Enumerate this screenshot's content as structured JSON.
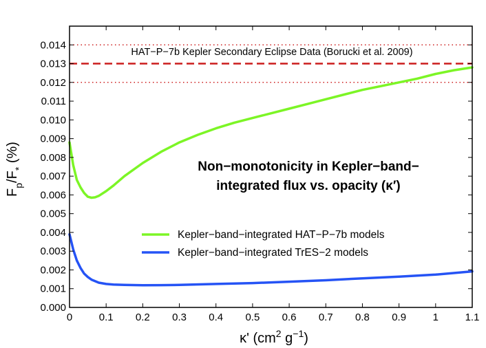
{
  "chart_data": {
    "type": "line",
    "title": "",
    "xlabel": "κ' (cm² g⁻¹)",
    "ylabel": "Fp/F* (%)",
    "xlim": [
      0,
      1.1
    ],
    "ylim": [
      0,
      0.015
    ],
    "x_ticks": [
      0,
      0.1,
      0.2,
      0.3,
      0.4,
      0.5,
      0.6,
      0.7,
      0.8,
      0.9,
      1,
      1.1
    ],
    "x_tick_labels": [
      "0",
      "0.1",
      "0.2",
      "0.3",
      "0.4",
      "0.5",
      "0.6",
      "0.7",
      "0.8",
      "0.9",
      "1",
      "1.1"
    ],
    "y_ticks": [
      0,
      0.001,
      0.002,
      0.003,
      0.004,
      0.005,
      0.006,
      0.007,
      0.008,
      0.009,
      0.01,
      0.011,
      0.012,
      0.013,
      0.014
    ],
    "y_tick_labels": [
      "0.000",
      "0.001",
      "0.002",
      "0.003",
      "0.004",
      "0.005",
      "0.006",
      "0.007",
      "0.008",
      "0.009",
      "0.010",
      "0.011",
      "0.012",
      "0.013",
      "0.014"
    ],
    "grid": false,
    "legend_position": "lower-right",
    "series": [
      {
        "name": "Kepler−band−integrated HAT−P−7b models",
        "color": "#7cf526",
        "x": [
          0,
          0.01,
          0.02,
          0.03,
          0.04,
          0.05,
          0.06,
          0.07,
          0.08,
          0.1,
          0.12,
          0.15,
          0.2,
          0.25,
          0.3,
          0.35,
          0.4,
          0.45,
          0.5,
          0.55,
          0.6,
          0.65,
          0.7,
          0.75,
          0.8,
          0.85,
          0.9,
          0.95,
          1.0,
          1.05,
          1.1
        ],
        "y": [
          0.0088,
          0.0076,
          0.0068,
          0.0064,
          0.0061,
          0.0059,
          0.00585,
          0.00587,
          0.00595,
          0.0062,
          0.0065,
          0.007,
          0.0077,
          0.0083,
          0.0088,
          0.0092,
          0.00955,
          0.00985,
          0.0101,
          0.01035,
          0.0106,
          0.01085,
          0.0111,
          0.01135,
          0.0116,
          0.0118,
          0.012,
          0.0122,
          0.01245,
          0.01265,
          0.0128
        ]
      },
      {
        "name": "Kepler−band−integrated TrES−2 models",
        "color": "#2553f5",
        "x": [
          0,
          0.01,
          0.02,
          0.03,
          0.04,
          0.05,
          0.06,
          0.08,
          0.1,
          0.12,
          0.15,
          0.2,
          0.25,
          0.3,
          0.4,
          0.5,
          0.6,
          0.7,
          0.8,
          0.9,
          1.0,
          1.1
        ],
        "y": [
          0.0039,
          0.0031,
          0.0025,
          0.0021,
          0.0018,
          0.00162,
          0.00148,
          0.00132,
          0.00125,
          0.00122,
          0.0012,
          0.00118,
          0.00119,
          0.0012,
          0.00125,
          0.0013,
          0.00137,
          0.00145,
          0.00155,
          0.00164,
          0.00175,
          0.00192
        ]
      }
    ],
    "reference_lines": [
      {
        "name": "secondary-eclipse-value",
        "y": 0.013,
        "color": "#cc1c1c",
        "style": "dashed"
      },
      {
        "name": "upper-error-bound",
        "y": 0.014,
        "color": "#cc1c1c",
        "style": "dotted"
      },
      {
        "name": "lower-error-bound",
        "y": 0.012,
        "color": "#cc1c1c",
        "style": "dotted"
      }
    ],
    "annotations": {
      "data_label": "HAT−P−7b Kepler Secondary Eclipse Data (Borucki et al. 2009)",
      "note_line1": "Non−monotonicity in Kepler−band−",
      "note_line2": "integrated flux vs. opacity (κ′)"
    }
  }
}
